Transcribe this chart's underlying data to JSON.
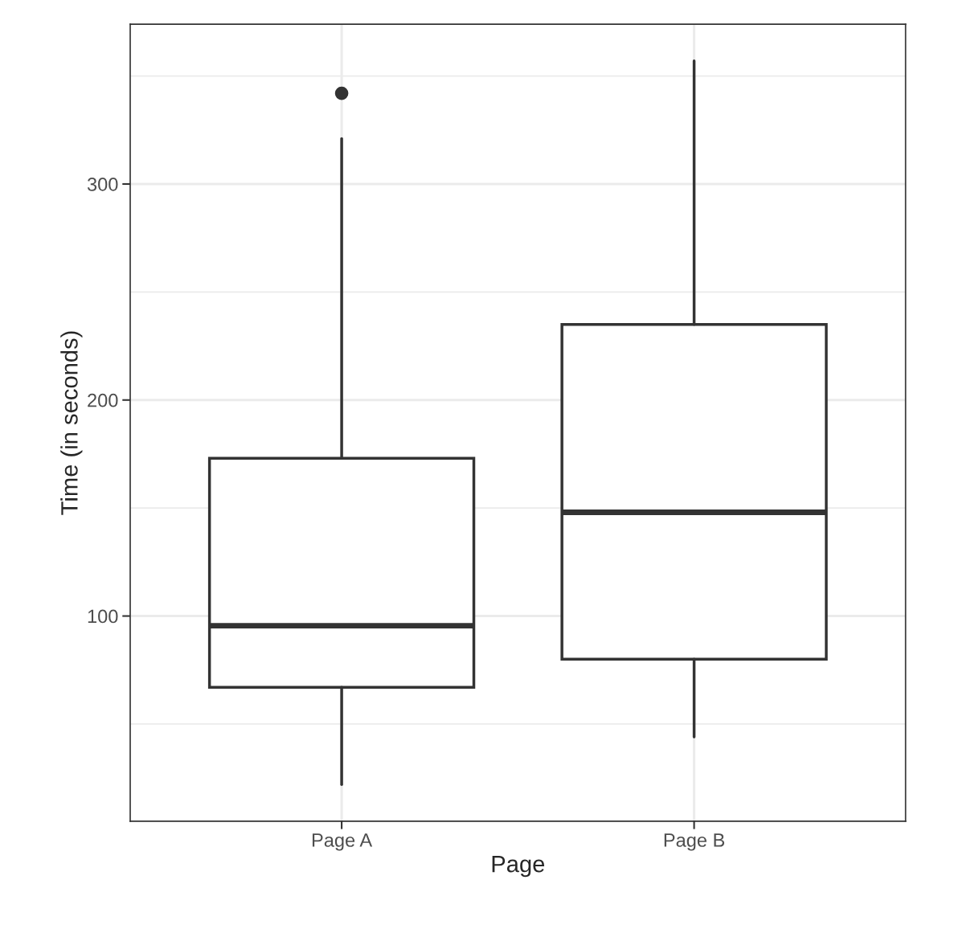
{
  "chart_data": {
    "type": "box",
    "xlabel": "Page",
    "ylabel": "Time (in seconds)",
    "categories": [
      "Page A",
      "Page B"
    ],
    "boxes": [
      {
        "low": 22,
        "q1": 67,
        "median": 95.5,
        "q3": 173,
        "high": 321,
        "outliers": [
          342
        ]
      },
      {
        "low": 44,
        "q1": 80,
        "median": 148,
        "q3": 235,
        "high": 357
      }
    ],
    "color": "#333333",
    "ylim": [
      5,
      374
    ],
    "yticks": [
      100,
      200,
      300
    ],
    "grid": true,
    "legend": false
  }
}
